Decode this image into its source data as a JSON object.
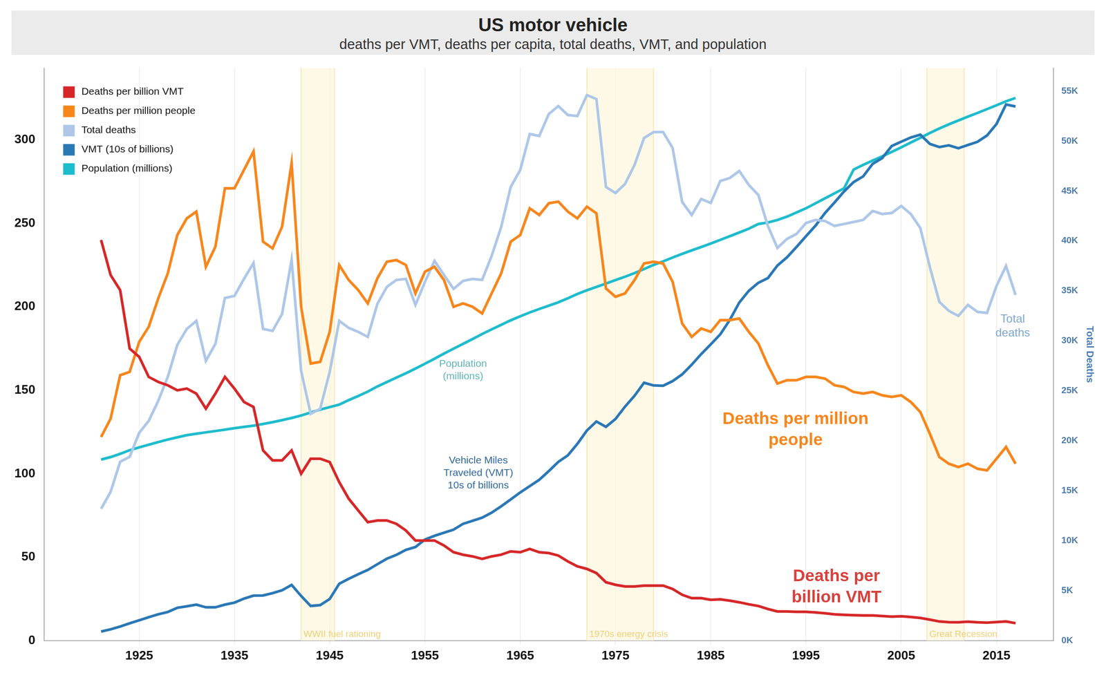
{
  "chart_data": {
    "type": "line",
    "title": "US motor vehicle",
    "subtitle": "deaths per VMT, deaths per capita, total deaths, VMT, and population",
    "y2label": "Total Deaths",
    "grid": true,
    "legend": "upper left",
    "x": [
      1921,
      1922,
      1923,
      1924,
      1925,
      1926,
      1927,
      1928,
      1929,
      1930,
      1931,
      1932,
      1933,
      1934,
      1935,
      1936,
      1937,
      1938,
      1939,
      1940,
      1941,
      1942,
      1943,
      1944,
      1945,
      1946,
      1947,
      1948,
      1949,
      1950,
      1951,
      1952,
      1953,
      1954,
      1955,
      1956,
      1957,
      1958,
      1959,
      1960,
      1961,
      1962,
      1963,
      1964,
      1965,
      1966,
      1967,
      1968,
      1969,
      1970,
      1971,
      1972,
      1973,
      1974,
      1975,
      1976,
      1977,
      1978,
      1979,
      1980,
      1981,
      1982,
      1983,
      1984,
      1985,
      1986,
      1987,
      1988,
      1989,
      1990,
      1991,
      1992,
      1993,
      1994,
      1995,
      1996,
      1997,
      1998,
      1999,
      2000,
      2001,
      2002,
      2003,
      2004,
      2005,
      2006,
      2007,
      2008,
      2009,
      2010,
      2011,
      2012,
      2013,
      2014,
      2015,
      2016,
      2017
    ],
    "xlim": [
      1915,
      2021
    ],
    "xticks": [
      1925,
      1935,
      1945,
      1955,
      1965,
      1975,
      1985,
      1995,
      2005,
      2015
    ],
    "ylim": [
      0,
      343
    ],
    "yticks": [
      0,
      50,
      100,
      150,
      200,
      250,
      300
    ],
    "y2lim": [
      0,
      57300
    ],
    "y2ticks": [
      {
        "value": 0,
        "label": "0K"
      },
      {
        "value": 5000,
        "label": "5K"
      },
      {
        "value": 10000,
        "label": "10K"
      },
      {
        "value": 15000,
        "label": "15K"
      },
      {
        "value": 20000,
        "label": "20K"
      },
      {
        "value": 25000,
        "label": "25K"
      },
      {
        "value": 30000,
        "label": "30K"
      },
      {
        "value": 35000,
        "label": "35K"
      },
      {
        "value": 40000,
        "label": "40K"
      },
      {
        "value": 45000,
        "label": "45K"
      },
      {
        "value": 50000,
        "label": "50K"
      },
      {
        "value": 55000,
        "label": "55K"
      }
    ],
    "series": [
      {
        "name": "Deaths per billion VMT",
        "color": "#d62728",
        "values": [
          240,
          219,
          210,
          175,
          170,
          158,
          155,
          153,
          150,
          151,
          148,
          139,
          148,
          158,
          151,
          143,
          140,
          114,
          108,
          108,
          114,
          100,
          109,
          109,
          107,
          95,
          85,
          78,
          71,
          72,
          72,
          70,
          66,
          60,
          60,
          60,
          57,
          53,
          51.5,
          50.5,
          49,
          50.5,
          51.5,
          53.5,
          53,
          55,
          53,
          52.5,
          51,
          47.5,
          44.5,
          43,
          40.5,
          35,
          33.5,
          32.5,
          32.5,
          33,
          33,
          33,
          31,
          27.5,
          25.5,
          25.5,
          24.5,
          24.8,
          24,
          23,
          21.8,
          20.8,
          19,
          17.5,
          17.5,
          17.3,
          17.3,
          16.9,
          16.4,
          15.8,
          15.5,
          15.3,
          15.1,
          15.1,
          14.8,
          14.4,
          14.6,
          14.2,
          13.6,
          12.6,
          11.5,
          11.1,
          11,
          11.4,
          11,
          10.8,
          11.2,
          11.5,
          10.5
        ]
      },
      {
        "name": "Deaths per million people",
        "color": "#f7861c",
        "values": [
          122,
          133,
          159,
          161,
          179,
          188,
          205,
          220,
          243,
          253,
          257,
          224,
          236,
          271,
          271,
          282,
          293,
          239,
          235,
          248,
          286,
          200,
          166,
          167,
          185,
          225,
          216,
          210,
          202,
          217,
          227,
          228,
          225,
          208,
          221,
          224,
          216,
          200,
          202,
          200,
          196,
          208,
          220,
          239,
          243,
          259,
          255,
          262,
          263,
          257,
          253,
          260,
          256,
          211,
          206,
          208,
          216,
          226,
          227,
          226,
          215,
          190,
          182,
          187,
          185,
          192,
          192,
          193,
          185,
          178,
          165,
          154,
          156,
          156,
          158,
          158,
          157,
          153,
          152,
          149,
          148,
          149,
          147,
          146,
          147,
          143,
          137,
          124,
          110,
          106,
          104,
          106,
          103,
          102,
          109,
          116,
          106
        ]
      },
      {
        "name": "Total deaths",
        "color": "#aec7e8",
        "axis": "y2",
        "values": [
          13200,
          14900,
          17900,
          18400,
          20800,
          22000,
          24000,
          26400,
          29600,
          31200,
          32000,
          28000,
          29700,
          34300,
          34500,
          36200,
          37800,
          31200,
          31000,
          32700,
          38100,
          27000,
          22700,
          23200,
          26900,
          32000,
          31300,
          30900,
          30400,
          33700,
          35400,
          36100,
          36200,
          33600,
          35900,
          38000,
          36600,
          35200,
          36000,
          36200,
          36100,
          38500,
          41400,
          45400,
          47100,
          50700,
          50500,
          52700,
          53500,
          52600,
          52500,
          54600,
          54200,
          45400,
          44800,
          45700,
          47600,
          50300,
          50900,
          50900,
          49300,
          43900,
          42600,
          44200,
          43800,
          46000,
          46300,
          47000,
          45600,
          44600,
          41500,
          39300,
          40200,
          40700,
          41800,
          42100,
          42000,
          41500,
          41700,
          41900,
          42100,
          43000,
          42700,
          42800,
          43500,
          42700,
          41300,
          37400,
          33900,
          33000,
          32500,
          33600,
          32900,
          32800,
          35500,
          37500,
          34600
        ]
      },
      {
        "name": "VMT (10s of billions)",
        "color": "#2a78b6",
        "values": [
          5.5,
          6.8,
          8.5,
          10.4,
          12.2,
          14.1,
          15.8,
          17.2,
          19.7,
          20.6,
          21.6,
          20.0,
          20.0,
          21.6,
          22.8,
          25.2,
          27.0,
          27.1,
          28.5,
          30.2,
          33.4,
          26.8,
          20.8,
          21.3,
          25.0,
          34.1,
          37.1,
          39.8,
          42.4,
          45.8,
          49.1,
          51.4,
          54.4,
          56.1,
          60.6,
          62.8,
          64.7,
          66.5,
          70.0,
          71.8,
          73.7,
          76.7,
          80.5,
          84.6,
          88.8,
          92.6,
          96.4,
          101.6,
          107.1,
          111.0,
          117.9,
          125.9,
          131.3,
          128.1,
          132.8,
          140.2,
          146.7,
          154.5,
          152.9,
          152.7,
          155.5,
          159.5,
          165.3,
          171.7,
          177.5,
          183.5,
          192.1,
          202.6,
          209.6,
          214.4,
          217.2,
          224.7,
          229.6,
          235.8,
          242.3,
          248.6,
          256.2,
          262.5,
          269.1,
          274.7,
          278.1,
          285.6,
          289.1,
          296.3,
          298.9,
          301.4,
          303.1,
          297.6,
          295.7,
          296.7,
          295.0,
          296.9,
          298.8,
          302.6,
          309.5,
          321.2,
          320.0
        ]
      },
      {
        "name": "Population (millions)",
        "color": "#1ebccd",
        "values": [
          108.5,
          110.0,
          111.9,
          114.1,
          115.8,
          117.4,
          119.0,
          120.5,
          121.8,
          123.1,
          124.0,
          124.8,
          125.6,
          126.4,
          127.3,
          128.1,
          128.8,
          129.8,
          130.9,
          132.1,
          133.4,
          134.9,
          136.7,
          138.4,
          139.9,
          141.4,
          144.1,
          146.6,
          149.2,
          152.3,
          154.9,
          157.6,
          160.2,
          163.0,
          165.9,
          168.9,
          172.0,
          174.9,
          177.8,
          180.7,
          183.7,
          186.5,
          189.2,
          191.9,
          194.3,
          196.6,
          198.7,
          200.7,
          202.7,
          205.1,
          207.7,
          209.9,
          211.9,
          213.9,
          216.0,
          218.0,
          220.2,
          222.6,
          225.1,
          227.2,
          229.5,
          231.7,
          233.8,
          235.8,
          237.9,
          240.1,
          242.3,
          244.5,
          246.8,
          249.6,
          250.5,
          252,
          254,
          256.5,
          259,
          262,
          265,
          268,
          271,
          282.2,
          285.0,
          287.6,
          290.1,
          292.8,
          295.5,
          298.4,
          301.2,
          304.1,
          306.8,
          309.3,
          311.6,
          313.9,
          316.1,
          318.4,
          320.7,
          323.1,
          325.1
        ]
      }
    ],
    "bands": [
      {
        "label": "WWII fuel rationing",
        "start": 1942,
        "end": 1945.5
      },
      {
        "label": "1970s energy crisis",
        "start": 1972,
        "end": 1979
      },
      {
        "label": "Great Recession",
        "start": 2007.7,
        "end": 2011.6
      }
    ],
    "annotations": [
      {
        "text": "Population\n(millions)",
        "color": "#5fb5b9"
      },
      {
        "text": "Vehicle Miles\nTraveled (VMT)\n10s of billions",
        "color": "#2f679c"
      },
      {
        "text": "Deaths per million\npeople",
        "color": "#f7861c"
      },
      {
        "text": "Deaths per\nbillion VMT",
        "color": "#d8403c"
      },
      {
        "text": "Total\ndeaths",
        "color": "#7ea6d0"
      }
    ]
  }
}
